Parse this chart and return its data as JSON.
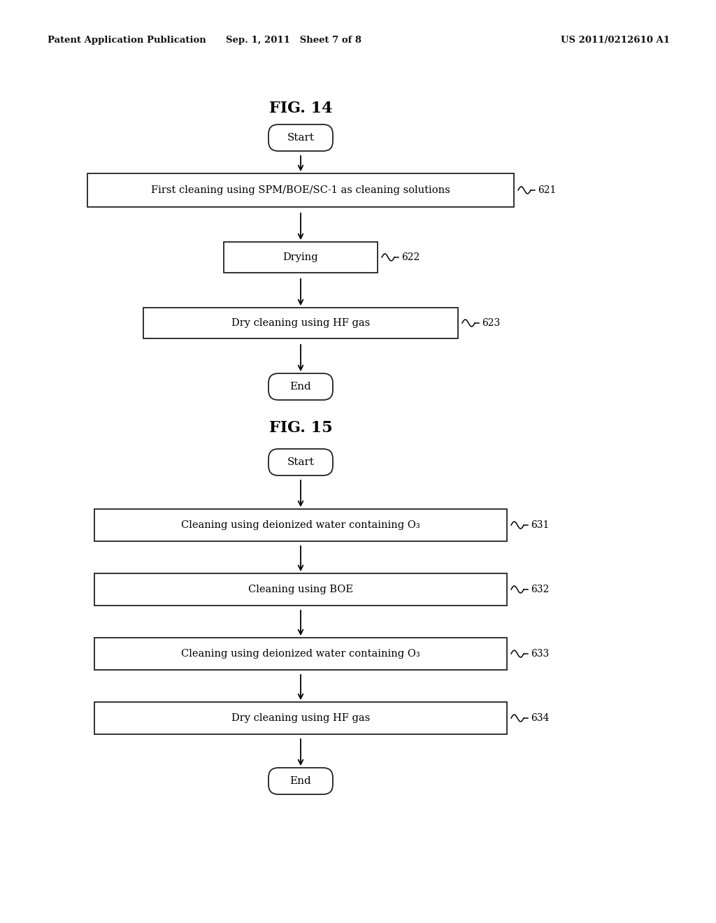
{
  "bg_color": "#ffffff",
  "header_left": "Patent Application Publication",
  "header_center": "Sep. 1, 2011   Sheet 7 of 8",
  "header_right": "US 2011/0212610 A1",
  "fig14_title": "FIG. 14",
  "fig15_title": "FIG. 15",
  "fig14_start": "Start",
  "fig14_end": "End",
  "fig14_boxes": [
    {
      "text": "First cleaning using SPM/BOE/SC-1 as cleaning solutions",
      "ref": "621"
    },
    {
      "text": "Drying",
      "ref": "622"
    },
    {
      "text": "Dry cleaning using HF gas",
      "ref": "623"
    }
  ],
  "fig15_start": "Start",
  "fig15_end": "End",
  "fig15_boxes": [
    {
      "text": "Cleaning using deionized water containing O₃",
      "ref": "631"
    },
    {
      "text": "Cleaning using BOE",
      "ref": "632"
    },
    {
      "text": "Cleaning using deionized water containing O₃",
      "ref": "633"
    },
    {
      "text": "Dry cleaning using HF gas",
      "ref": "634"
    }
  ]
}
